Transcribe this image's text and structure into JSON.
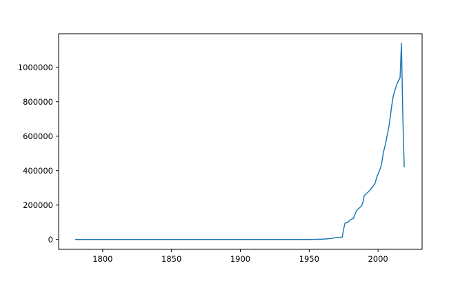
{
  "chart_data": {
    "type": "line",
    "title": "",
    "xlabel": "",
    "ylabel": "",
    "xlim": [
      1768,
      2032
    ],
    "ylim": [
      -57000,
      1195000
    ],
    "grid": false,
    "legend": "none",
    "xticks": [
      1800,
      1850,
      1900,
      1950,
      2000
    ],
    "yticks": [
      0,
      200000,
      400000,
      600000,
      800000,
      1000000
    ],
    "series": [
      {
        "color": "#1f77b4",
        "x": [
          1780,
          1800,
          1850,
          1900,
          1950,
          1955,
          1960,
          1963,
          1966,
          1968,
          1970,
          1972,
          1974,
          1975,
          1976,
          1978,
          1980,
          1982,
          1984,
          1985,
          1986,
          1988,
          1989,
          1990,
          1992,
          1994,
          1996,
          1998,
          1999,
          2000,
          2002,
          2003,
          2004,
          2005,
          2006,
          2008,
          2010,
          2011,
          2012,
          2014,
          2016,
          2017,
          2018,
          2019
        ],
        "values": [
          0,
          0,
          0,
          0,
          0,
          1000,
          2000,
          4000,
          6000,
          9000,
          11000,
          12000,
          14000,
          60000,
          95000,
          100000,
          115000,
          122000,
          160000,
          175000,
          180000,
          195000,
          215000,
          255000,
          270000,
          285000,
          305000,
          330000,
          360000,
          380000,
          420000,
          460000,
          510000,
          540000,
          580000,
          660000,
          780000,
          830000,
          860000,
          910000,
          940000,
          1140000,
          720000,
          420000
        ]
      }
    ]
  }
}
